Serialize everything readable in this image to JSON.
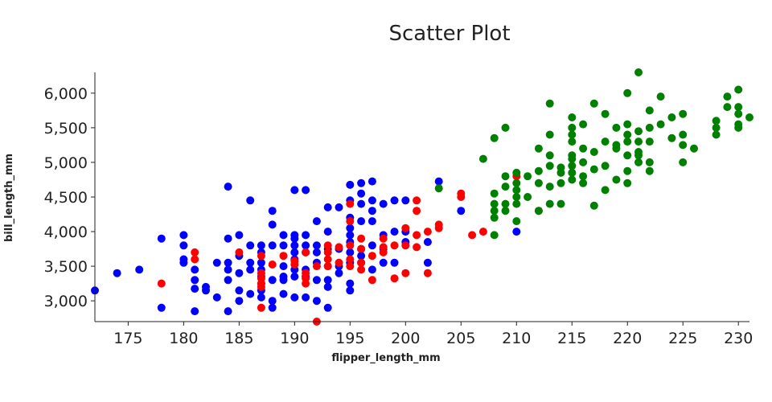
{
  "chart_data": {
    "type": "scatter",
    "title": "Scatter Plot",
    "xlabel": "flipper_length_mm",
    "ylabel": "bill_length_mm",
    "xlim": [
      172,
      231
    ],
    "ylim": [
      2700,
      6300
    ],
    "xticks": [
      175,
      180,
      185,
      190,
      195,
      200,
      205,
      210,
      215,
      220,
      225,
      230
    ],
    "yticks": [
      3000,
      3500,
      4000,
      4500,
      5000,
      5500,
      6000
    ],
    "ytick_labels": [
      "3,000",
      "3,500",
      "4,000",
      "4,500",
      "5,000",
      "5,500",
      "6,000"
    ],
    "grid": false,
    "legend": "none",
    "series": [
      {
        "color": "#0000ff",
        "points": [
          [
            172,
            3150
          ],
          [
            174,
            3400
          ],
          [
            176,
            3450
          ],
          [
            178,
            3900
          ],
          [
            178,
            2900
          ],
          [
            180,
            3950
          ],
          [
            180,
            3800
          ],
          [
            180,
            3600
          ],
          [
            180,
            3550
          ],
          [
            181,
            3300
          ],
          [
            181,
            3175
          ],
          [
            181,
            2850
          ],
          [
            181,
            3450
          ],
          [
            182,
            3200
          ],
          [
            182,
            3150
          ],
          [
            183,
            3550
          ],
          [
            183,
            3050
          ],
          [
            184,
            4650
          ],
          [
            184,
            3900
          ],
          [
            184,
            3550
          ],
          [
            184,
            3450
          ],
          [
            184,
            3300
          ],
          [
            184,
            2850
          ],
          [
            185,
            3950
          ],
          [
            185,
            3650
          ],
          [
            185,
            3400
          ],
          [
            185,
            3150
          ],
          [
            185,
            3000
          ],
          [
            186,
            4450
          ],
          [
            186,
            3800
          ],
          [
            186,
            3550
          ],
          [
            186,
            3450
          ],
          [
            186,
            3100
          ],
          [
            187,
            3800
          ],
          [
            187,
            3700
          ],
          [
            187,
            3550
          ],
          [
            187,
            3450
          ],
          [
            187,
            3350
          ],
          [
            187,
            3250
          ],
          [
            187,
            3150
          ],
          [
            187,
            3050
          ],
          [
            188,
            4300
          ],
          [
            188,
            4100
          ],
          [
            188,
            3800
          ],
          [
            188,
            3300
          ],
          [
            188,
            3000
          ],
          [
            188,
            2900
          ],
          [
            189,
            3950
          ],
          [
            189,
            3800
          ],
          [
            189,
            3500
          ],
          [
            189,
            3350
          ],
          [
            189,
            3300
          ],
          [
            189,
            3100
          ],
          [
            190,
            4600
          ],
          [
            190,
            3950
          ],
          [
            190,
            3900
          ],
          [
            190,
            3800
          ],
          [
            190,
            3700
          ],
          [
            190,
            3600
          ],
          [
            190,
            3450
          ],
          [
            190,
            3350
          ],
          [
            190,
            3050
          ],
          [
            191,
            4600
          ],
          [
            191,
            3950
          ],
          [
            191,
            3800
          ],
          [
            191,
            3700
          ],
          [
            191,
            3450
          ],
          [
            191,
            3350
          ],
          [
            191,
            3050
          ],
          [
            192,
            4150
          ],
          [
            192,
            3800
          ],
          [
            192,
            3700
          ],
          [
            192,
            3550
          ],
          [
            192,
            3300
          ],
          [
            192,
            3000
          ],
          [
            193,
            4350
          ],
          [
            193,
            4000
          ],
          [
            193,
            3750
          ],
          [
            193,
            3500
          ],
          [
            193,
            3300
          ],
          [
            193,
            3200
          ],
          [
            193,
            2900
          ],
          [
            194,
            4350
          ],
          [
            194,
            3750
          ],
          [
            194,
            3500
          ],
          [
            194,
            3400
          ],
          [
            195,
            4675
          ],
          [
            195,
            4450
          ],
          [
            195,
            4200
          ],
          [
            195,
            4050
          ],
          [
            195,
            3950
          ],
          [
            195,
            3850
          ],
          [
            195,
            3700
          ],
          [
            195,
            3550
          ],
          [
            195,
            3250
          ],
          [
            195,
            3150
          ],
          [
            196,
            4700
          ],
          [
            196,
            4550
          ],
          [
            196,
            4400
          ],
          [
            196,
            4150
          ],
          [
            196,
            3750
          ],
          [
            196,
            3650
          ],
          [
            196,
            3550
          ],
          [
            197,
            4725
          ],
          [
            197,
            4450
          ],
          [
            197,
            4300
          ],
          [
            197,
            4150
          ],
          [
            197,
            3800
          ],
          [
            197,
            3450
          ],
          [
            198,
            4400
          ],
          [
            198,
            3950
          ],
          [
            198,
            3750
          ],
          [
            198,
            3550
          ],
          [
            199,
            4450
          ],
          [
            199,
            4000
          ],
          [
            199,
            3550
          ],
          [
            200,
            4450
          ],
          [
            200,
            4000
          ],
          [
            200,
            3850
          ],
          [
            202,
            3850
          ],
          [
            202,
            3550
          ],
          [
            203,
            4725
          ],
          [
            205,
            4300
          ],
          [
            210,
            4000
          ]
        ]
      },
      {
        "color": "#ff0000",
        "points": [
          [
            178,
            3250
          ],
          [
            181,
            3700
          ],
          [
            181,
            3600
          ],
          [
            185,
            3700
          ],
          [
            187,
            3650
          ],
          [
            187,
            3400
          ],
          [
            187,
            3325
          ],
          [
            187,
            3250
          ],
          [
            187,
            3200
          ],
          [
            187,
            2900
          ],
          [
            188,
            3525
          ],
          [
            189,
            3650
          ],
          [
            190,
            3575
          ],
          [
            190,
            3525
          ],
          [
            191,
            3700
          ],
          [
            191,
            3400
          ],
          [
            191,
            3325
          ],
          [
            191,
            3250
          ],
          [
            192,
            2700
          ],
          [
            192,
            3500
          ],
          [
            193,
            3800
          ],
          [
            193,
            3700
          ],
          [
            193,
            3600
          ],
          [
            193,
            3500
          ],
          [
            194,
            3775
          ],
          [
            194,
            3550
          ],
          [
            195,
            4400
          ],
          [
            195,
            4150
          ],
          [
            195,
            3800
          ],
          [
            195,
            3600
          ],
          [
            195,
            3500
          ],
          [
            196,
            3900
          ],
          [
            196,
            3750
          ],
          [
            196,
            3550
          ],
          [
            196,
            3450
          ],
          [
            197,
            3650
          ],
          [
            197,
            3300
          ],
          [
            198,
            3900
          ],
          [
            198,
            3700
          ],
          [
            198,
            3775
          ],
          [
            199,
            3800
          ],
          [
            199,
            3325
          ],
          [
            200,
            4050
          ],
          [
            200,
            3800
          ],
          [
            200,
            3400
          ],
          [
            201,
            4450
          ],
          [
            201,
            4300
          ],
          [
            201,
            3950
          ],
          [
            201,
            3775
          ],
          [
            202,
            4000
          ],
          [
            202,
            3400
          ],
          [
            203,
            4050
          ],
          [
            203,
            4100
          ],
          [
            205,
            4550
          ],
          [
            205,
            4500
          ],
          [
            206,
            3950
          ],
          [
            207,
            4000
          ],
          [
            210,
            4800
          ],
          [
            212,
            4300
          ]
        ]
      },
      {
        "color": "#008000",
        "points": [
          [
            203,
            4625
          ],
          [
            207,
            5050
          ],
          [
            208,
            5350
          ],
          [
            208,
            4550
          ],
          [
            208,
            4400
          ],
          [
            208,
            4300
          ],
          [
            208,
            4200
          ],
          [
            208,
            3950
          ],
          [
            209,
            5500
          ],
          [
            209,
            4800
          ],
          [
            209,
            4650
          ],
          [
            209,
            4400
          ],
          [
            209,
            4300
          ],
          [
            210,
            4850
          ],
          [
            210,
            4700
          ],
          [
            210,
            4600
          ],
          [
            210,
            4500
          ],
          [
            210,
            4400
          ],
          [
            210,
            4150
          ],
          [
            211,
            4800
          ],
          [
            211,
            4500
          ],
          [
            212,
            5200
          ],
          [
            212,
            4875
          ],
          [
            212,
            4700
          ],
          [
            212,
            4300
          ],
          [
            213,
            5850
          ],
          [
            213,
            5400
          ],
          [
            213,
            5100
          ],
          [
            213,
            4950
          ],
          [
            213,
            4650
          ],
          [
            213,
            4400
          ],
          [
            214,
            4925
          ],
          [
            214,
            4850
          ],
          [
            214,
            4700
          ],
          [
            214,
            4400
          ],
          [
            215,
            5650
          ],
          [
            215,
            5500
          ],
          [
            215,
            5400
          ],
          [
            215,
            5300
          ],
          [
            215,
            5100
          ],
          [
            215,
            5050
          ],
          [
            215,
            4950
          ],
          [
            215,
            4850
          ],
          [
            215,
            4750
          ],
          [
            216,
            5550
          ],
          [
            216,
            5200
          ],
          [
            216,
            5000
          ],
          [
            216,
            4800
          ],
          [
            216,
            4700
          ],
          [
            217,
            5850
          ],
          [
            217,
            5150
          ],
          [
            217,
            4900
          ],
          [
            217,
            4375
          ],
          [
            218,
            5700
          ],
          [
            218,
            5300
          ],
          [
            218,
            4950
          ],
          [
            218,
            4600
          ],
          [
            219,
            5500
          ],
          [
            219,
            5250
          ],
          [
            219,
            5200
          ],
          [
            219,
            4750
          ],
          [
            220,
            6000
          ],
          [
            220,
            5550
          ],
          [
            220,
            5400
          ],
          [
            220,
            5300
          ],
          [
            220,
            5100
          ],
          [
            220,
            4875
          ],
          [
            220,
            4700
          ],
          [
            221,
            6300
          ],
          [
            221,
            5450
          ],
          [
            221,
            5300
          ],
          [
            221,
            5150
          ],
          [
            221,
            5100
          ],
          [
            221,
            5000
          ],
          [
            222,
            5750
          ],
          [
            222,
            5500
          ],
          [
            222,
            5300
          ],
          [
            222,
            5000
          ],
          [
            222,
            4875
          ],
          [
            223,
            5950
          ],
          [
            223,
            5550
          ],
          [
            224,
            5650
          ],
          [
            224,
            5350
          ],
          [
            225,
            5700
          ],
          [
            225,
            5400
          ],
          [
            225,
            5250
          ],
          [
            225,
            5000
          ],
          [
            226,
            5200
          ],
          [
            228,
            5600
          ],
          [
            228,
            5500
          ],
          [
            228,
            5400
          ],
          [
            229,
            5950
          ],
          [
            229,
            5800
          ],
          [
            230,
            6050
          ],
          [
            230,
            5800
          ],
          [
            230,
            5700
          ],
          [
            230,
            5550
          ],
          [
            230,
            5500
          ],
          [
            231,
            5650
          ]
        ]
      }
    ]
  }
}
